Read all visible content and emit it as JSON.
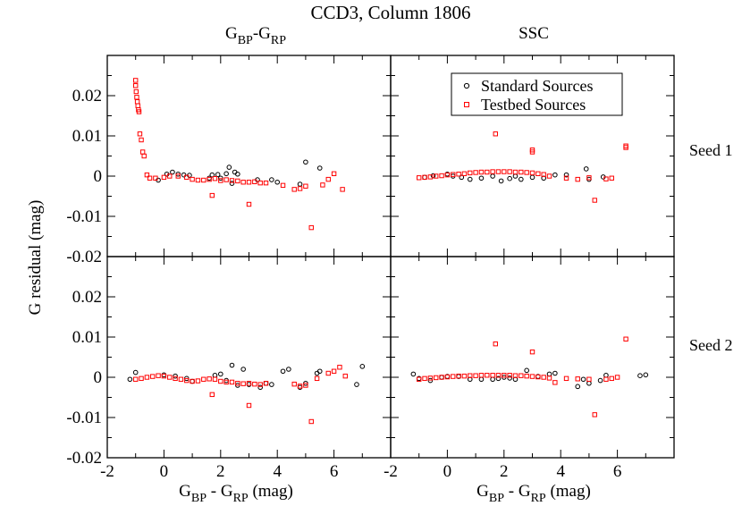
{
  "chart_data": {
    "type": "scatter",
    "title": "CCD3, Column 1806",
    "column_titles": [
      {
        "main": "G",
        "sub1": "BP",
        "mid": "-G",
        "sub2": "RP"
      },
      {
        "main": "SSC"
      }
    ],
    "row_titles": [
      "Seed 1",
      "Seed 2"
    ],
    "xlabel": {
      "a": "G",
      "a_sub": "BP",
      "mid": " - G",
      "b_sub": "RP",
      "unit": " (mag)"
    },
    "ylabel": "G residual (mag)",
    "xlim": [
      -2,
      8
    ],
    "ylim": [
      -0.02,
      0.03
    ],
    "xticks": [
      -2,
      0,
      2,
      4,
      6
    ],
    "xtick_labels": [
      "-2",
      "0",
      "2",
      "4",
      "6"
    ],
    "yticks": [
      -0.02,
      -0.01,
      0,
      0.01,
      0.02
    ],
    "ytick_labels": [
      "-0.02",
      "-0.01",
      "0",
      "0.01",
      "0.02"
    ],
    "legend": {
      "placement": "top-right of upper-right panel",
      "entries": [
        {
          "label": "Standard Sources",
          "marker": "circle",
          "color": "#000000"
        },
        {
          "label": "Testbed Sources",
          "marker": "square",
          "color": "#ff0000"
        }
      ]
    },
    "panels": [
      {
        "row": 0,
        "col": 0,
        "series": [
          {
            "name": "Standard Sources",
            "marker": "circle",
            "color": "#000000",
            "x": [
              -0.2,
              0.1,
              0.3,
              0.5,
              0.7,
              0.9,
              1.6,
              1.7,
              1.9,
              2.0,
              2.2,
              2.3,
              2.4,
              2.5,
              2.6,
              3.3,
              3.8,
              4.0,
              4.8,
              5.0,
              5.5
            ],
            "y": [
              -0.001,
              0.0005,
              0.001,
              0.0005,
              0.0003,
              0.0002,
              -0.0005,
              0.0003,
              0.0004,
              -0.0005,
              0.0006,
              0.0022,
              -0.0018,
              0.001,
              0.0005,
              -0.0009,
              -0.0009,
              -0.0015,
              -0.002,
              0.0035,
              0.002
            ]
          },
          {
            "name": "Testbed Sources",
            "marker": "square",
            "color": "#ff0000",
            "x": [
              -1.0,
              -1.0,
              -0.98,
              -0.96,
              -0.94,
              -0.92,
              -0.9,
              -0.88,
              -0.85,
              -0.8,
              -0.75,
              -0.7,
              -0.6,
              -0.5,
              -0.3,
              0.0,
              0.2,
              0.5,
              0.8,
              1.0,
              1.2,
              1.4,
              1.6,
              1.8,
              2.0,
              2.2,
              2.4,
              2.6,
              2.8,
              3.0,
              3.2,
              3.4,
              3.6,
              4.2,
              4.6,
              4.8,
              5.0,
              1.7,
              3.0,
              5.2,
              5.6,
              5.8,
              6.0,
              6.3
            ],
            "y": [
              0.0238,
              0.0225,
              0.021,
              0.0196,
              0.0185,
              0.0175,
              0.0165,
              0.016,
              0.0105,
              0.009,
              0.006,
              0.005,
              0.0003,
              -0.0005,
              -0.0005,
              -0.0003,
              0.0,
              0.0,
              -0.0003,
              -0.0008,
              -0.001,
              -0.001,
              -0.0008,
              -0.0006,
              -0.0011,
              -0.0009,
              -0.0011,
              -0.0012,
              -0.0015,
              -0.0015,
              -0.0014,
              -0.0017,
              -0.0017,
              -0.0023,
              -0.0033,
              -0.0031,
              -0.0025,
              -0.0048,
              -0.007,
              -0.0128,
              -0.0022,
              -0.0008,
              0.0006,
              -0.0033
            ]
          }
        ]
      },
      {
        "row": 0,
        "col": 1,
        "series": [
          {
            "name": "Standard Sources",
            "marker": "circle",
            "color": "#000000",
            "x": [
              -0.8,
              -0.5,
              0.0,
              0.2,
              0.5,
              0.8,
              1.2,
              1.6,
              1.9,
              2.2,
              2.4,
              2.6,
              3.0,
              3.4,
              3.8,
              4.2,
              4.9,
              5.0,
              5.5
            ],
            "y": [
              -0.0003,
              0.0001,
              0.0005,
              0.0,
              -0.0003,
              -0.0008,
              -0.0005,
              0.0,
              -0.0012,
              -0.0006,
              0.0,
              -0.0008,
              -0.0003,
              -0.0005,
              0.0003,
              0.0003,
              0.0018,
              -0.0008,
              -0.0002
            ]
          },
          {
            "name": "Testbed Sources",
            "marker": "square",
            "color": "#ff0000",
            "x": [
              -1.0,
              -0.8,
              -0.6,
              -0.4,
              -0.2,
              0.0,
              0.2,
              0.4,
              0.6,
              0.8,
              1.0,
              1.2,
              1.4,
              1.6,
              1.8,
              2.0,
              2.2,
              2.4,
              2.6,
              2.8,
              3.0,
              3.2,
              3.4,
              3.6,
              4.2,
              4.6,
              5.0,
              5.6,
              5.8,
              1.7,
              3.0,
              3.0,
              5.2,
              6.3,
              6.3
            ],
            "y": [
              -0.0004,
              -0.0003,
              -0.0002,
              0.0,
              0.0001,
              0.0003,
              0.0004,
              0.0005,
              0.0006,
              0.0008,
              0.0009,
              0.001,
              0.001,
              0.0011,
              0.0011,
              0.0011,
              0.0011,
              0.001,
              0.001,
              0.0009,
              0.0008,
              0.0006,
              0.0004,
              0.0,
              -0.0005,
              -0.0008,
              -0.0004,
              -0.0007,
              -0.0005,
              0.0105,
              0.0065,
              0.006,
              -0.006,
              0.0075,
              0.0071
            ]
          }
        ]
      },
      {
        "row": 1,
        "col": 0,
        "series": [
          {
            "name": "Standard Sources",
            "marker": "circle",
            "color": "#000000",
            "x": [
              -1.2,
              -1.0,
              0.0,
              0.4,
              0.8,
              1.0,
              1.8,
              2.0,
              2.2,
              2.4,
              2.6,
              2.8,
              3.0,
              3.4,
              3.6,
              3.8,
              4.2,
              4.4,
              4.8,
              5.0,
              5.4,
              5.5,
              6.8,
              7.0
            ],
            "y": [
              -0.0005,
              0.0012,
              0.0006,
              0.0003,
              -0.0003,
              -0.001,
              0.0005,
              0.0008,
              -0.0008,
              0.003,
              -0.002,
              0.002,
              -0.0018,
              -0.0025,
              -0.0015,
              -0.0018,
              0.0015,
              0.002,
              -0.0025,
              -0.0015,
              0.001,
              0.0015,
              -0.0018,
              0.0027
            ]
          },
          {
            "name": "Testbed Sources",
            "marker": "square",
            "color": "#ff0000",
            "x": [
              -1.0,
              -0.8,
              -0.6,
              -0.4,
              -0.2,
              0.0,
              0.2,
              0.4,
              0.6,
              0.8,
              1.0,
              1.2,
              1.4,
              1.6,
              1.8,
              2.0,
              2.2,
              2.4,
              2.6,
              2.8,
              3.0,
              3.2,
              3.4,
              3.6,
              4.6,
              4.8,
              5.0,
              5.4,
              5.8,
              6.0,
              1.7,
              3.0,
              5.2,
              6.2,
              6.4
            ],
            "y": [
              -0.0005,
              -0.0003,
              0.0,
              0.0002,
              0.0004,
              0.0003,
              0.0,
              -0.0003,
              -0.0005,
              -0.0008,
              -0.001,
              -0.0009,
              -0.0005,
              -0.0004,
              -0.0005,
              -0.001,
              -0.0012,
              -0.0012,
              -0.0015,
              -0.0016,
              -0.0015,
              -0.0017,
              -0.0018,
              -0.0015,
              -0.0017,
              -0.0022,
              -0.002,
              -0.0003,
              0.001,
              0.0015,
              -0.0043,
              -0.007,
              -0.011,
              0.0025,
              0.0003
            ]
          }
        ]
      },
      {
        "row": 1,
        "col": 1,
        "series": [
          {
            "name": "Standard Sources",
            "marker": "circle",
            "color": "#000000",
            "x": [
              -1.2,
              -1.0,
              -0.6,
              -0.2,
              0.0,
              0.4,
              0.8,
              1.2,
              1.6,
              1.8,
              2.0,
              2.2,
              2.4,
              2.8,
              3.2,
              3.6,
              3.8,
              4.6,
              4.8,
              5.0,
              5.4,
              5.6,
              6.8,
              7.0
            ],
            "y": [
              0.0008,
              -0.0003,
              -0.0008,
              0.0,
              0.0002,
              0.0002,
              -0.0005,
              -0.0005,
              -0.0005,
              -0.0003,
              0.0,
              -0.0002,
              -0.0005,
              0.0017,
              0.0002,
              0.0008,
              0.001,
              -0.0023,
              -0.0005,
              -0.0015,
              -0.0008,
              0.0005,
              0.0004,
              0.0006
            ]
          },
          {
            "name": "Testbed Sources",
            "marker": "square",
            "color": "#ff0000",
            "x": [
              -1.0,
              -0.8,
              -0.6,
              -0.4,
              -0.2,
              0.0,
              0.2,
              0.4,
              0.6,
              0.8,
              1.0,
              1.2,
              1.4,
              1.6,
              1.8,
              2.0,
              2.2,
              2.4,
              2.6,
              2.8,
              3.0,
              3.2,
              3.4,
              3.6,
              4.2,
              4.6,
              5.0,
              5.6,
              5.8,
              6.0,
              1.7,
              3.0,
              3.8,
              5.2,
              6.3
            ],
            "y": [
              -0.0005,
              -0.0003,
              -0.0002,
              -0.0001,
              0.0,
              0.0001,
              0.0002,
              0.0003,
              0.0003,
              0.0004,
              0.0004,
              0.0005,
              0.0005,
              0.0005,
              0.0005,
              0.0005,
              0.0005,
              0.0004,
              0.0004,
              0.0003,
              0.0002,
              0.0001,
              0.0,
              -0.0002,
              -0.0003,
              -0.0004,
              -0.0005,
              -0.0005,
              -0.0003,
              0.0,
              0.0083,
              0.0063,
              -0.0013,
              -0.0093,
              0.0095
            ]
          }
        ]
      }
    ]
  }
}
